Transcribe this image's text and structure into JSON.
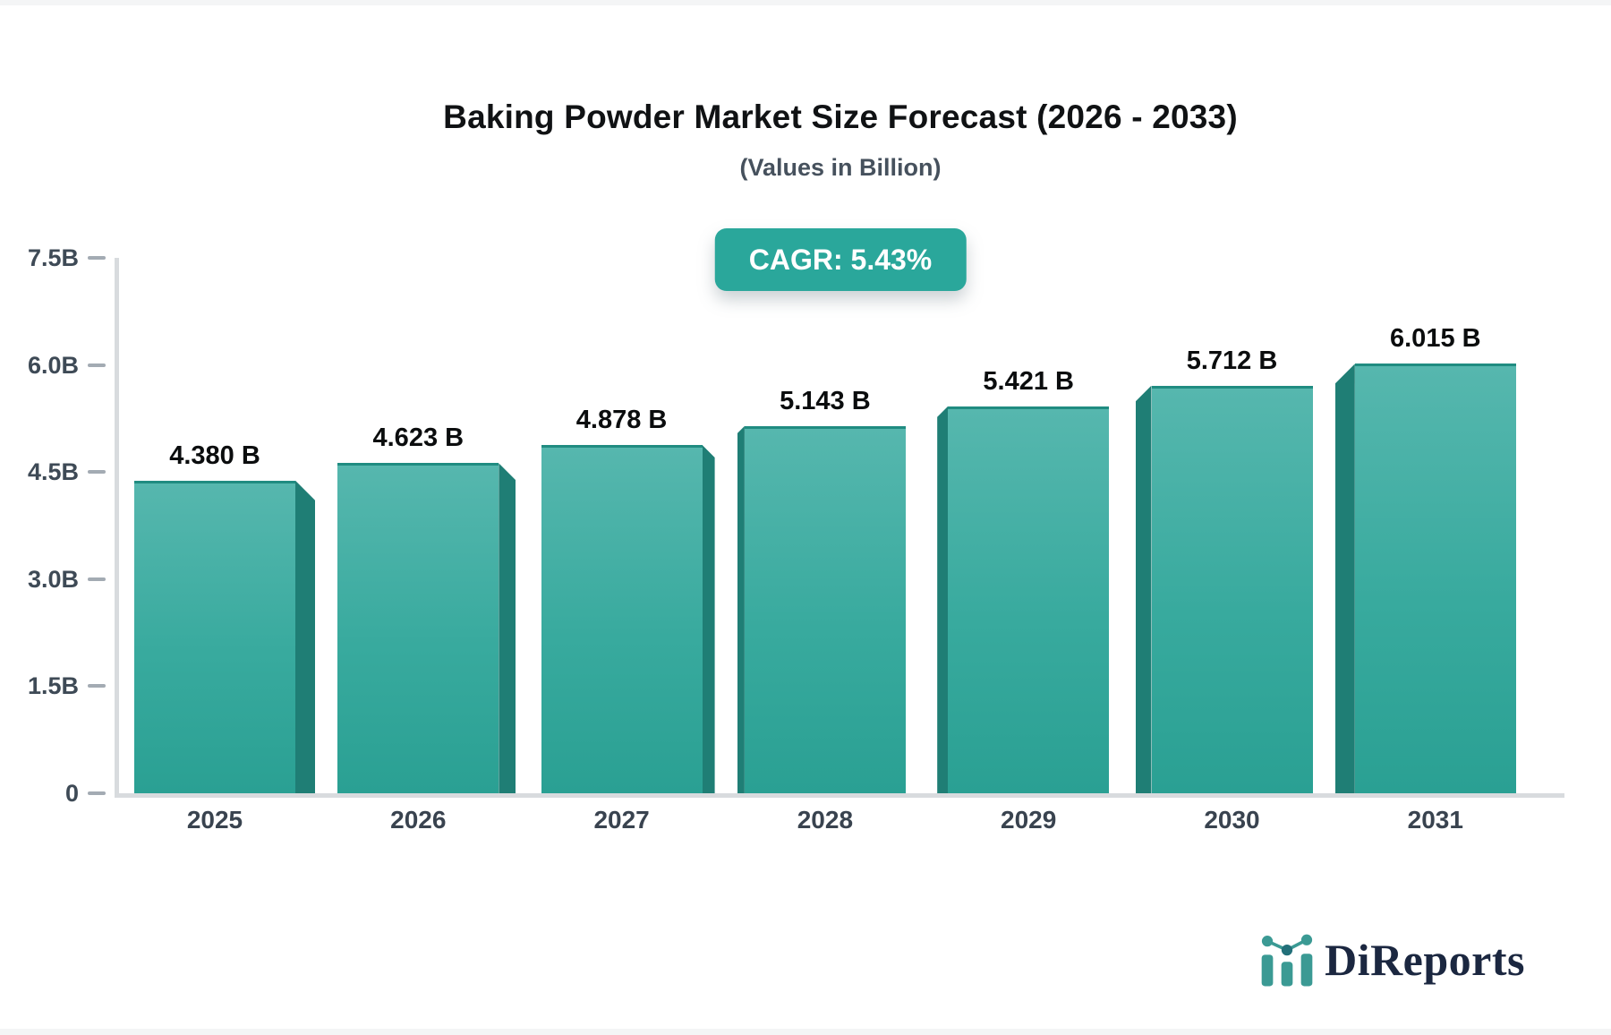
{
  "page": {
    "background": "#f4f5f6",
    "card_background": "#ffffff"
  },
  "header": {
    "title": "Baking Powder Market Size Forecast (2026 - 2033)",
    "subtitle": "(Values in Billion)"
  },
  "badge": {
    "label": "CAGR: 5.43%",
    "background": "#2aa79b",
    "text_color": "#ffffff"
  },
  "chart_data": {
    "type": "bar",
    "title": "Baking Powder Market Size Forecast (2026 - 2033)",
    "subtitle": "(Values in Billion)",
    "cagr_label": "CAGR: 5.43%",
    "categories": [
      "2025",
      "2026",
      "2027",
      "2028",
      "2029",
      "2030",
      "2031"
    ],
    "values": [
      4.38,
      4.623,
      4.878,
      5.143,
      5.421,
      5.712,
      6.015
    ],
    "value_labels": [
      "4.380 B",
      "4.623 B",
      "4.878 B",
      "5.143 B",
      "5.421 B",
      "5.712 B",
      "6.015 B"
    ],
    "xlabel": "",
    "ylabel": "",
    "ylim": [
      0,
      7.5
    ],
    "yticks": [
      {
        "label": "0",
        "value": 0
      },
      {
        "label": "1.5B",
        "value": 1.5
      },
      {
        "label": "3.0B",
        "value": 3.0
      },
      {
        "label": "4.5B",
        "value": 4.5
      },
      {
        "label": "6.0B",
        "value": 6.0
      },
      {
        "label": "7.5B",
        "value": 7.5
      }
    ],
    "grid": false,
    "legend": false,
    "bar_color_top": "#56b7ae",
    "bar_color_bottom": "#2aa093",
    "bar_side_color": "#1f7e75",
    "axis_color": "#d8dbde",
    "tick_text_color": "#3e4a56",
    "value_text_color": "#0b0d0e"
  },
  "logo": {
    "text": "DiReports",
    "text_color": "#1b2740",
    "icon_color": "#3b9a94",
    "icon_dot_color": "#23707a"
  }
}
